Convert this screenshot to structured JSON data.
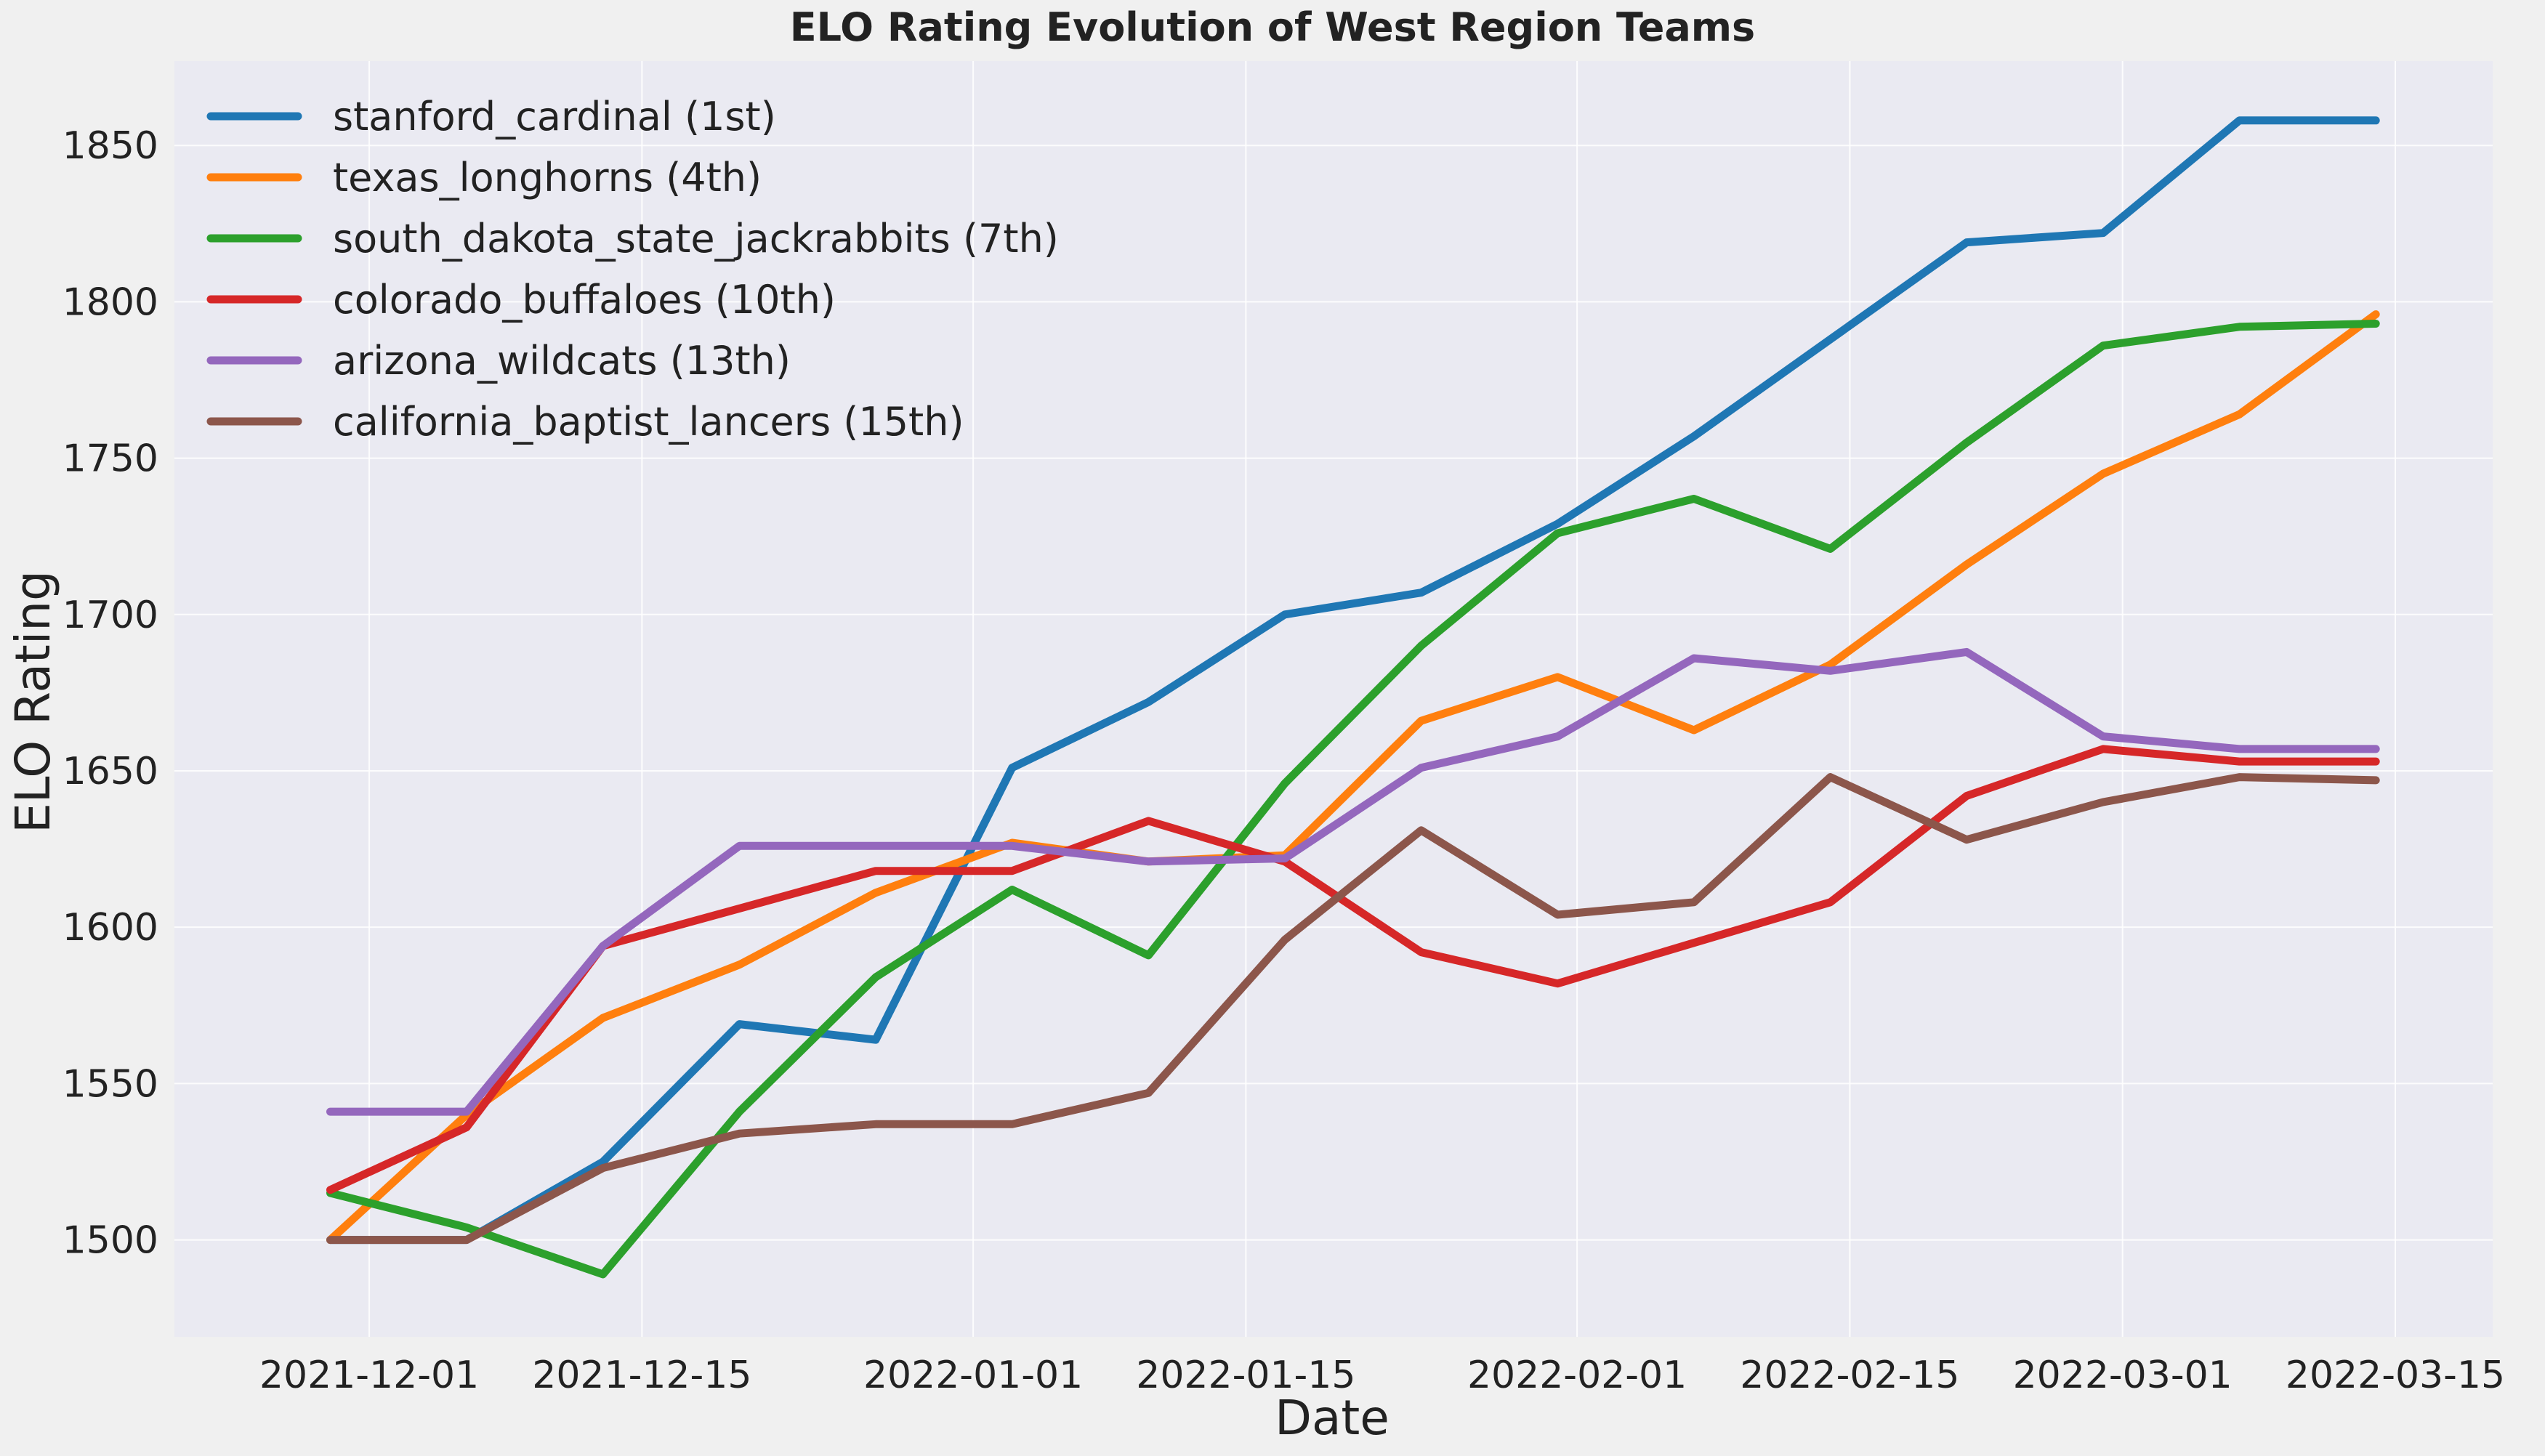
{
  "chart_data": {
    "type": "line",
    "title": "ELO Rating Evolution of West Region Teams",
    "xlabel": "Date",
    "ylabel": "ELO Rating",
    "x": [
      "2021-11-29",
      "2021-12-06",
      "2021-12-13",
      "2021-12-20",
      "2021-12-27",
      "2022-01-03",
      "2022-01-10",
      "2022-01-17",
      "2022-01-24",
      "2022-01-31",
      "2022-02-07",
      "2022-02-14",
      "2022-02-21",
      "2022-02-28",
      "2022-03-07",
      "2022-03-14"
    ],
    "x_ticks": [
      "2021-12-01",
      "2021-12-15",
      "2022-01-01",
      "2022-01-15",
      "2022-02-01",
      "2022-02-15",
      "2022-03-01",
      "2022-03-15"
    ],
    "xlim": [
      "2021-11-21",
      "2022-03-20"
    ],
    "y_ticks": [
      1500,
      1550,
      1600,
      1650,
      1700,
      1750,
      1800,
      1850
    ],
    "ylim": [
      1469,
      1877
    ],
    "grid": true,
    "legend_position": "top-left",
    "series": [
      {
        "name": "stanford_cardinal (1st)",
        "color": "#1f77b4",
        "values": [
          1500,
          1500,
          1525,
          1569,
          1564,
          1651,
          1672,
          1700,
          1707,
          1729,
          1757,
          1788,
          1819,
          1822,
          1858,
          1858
        ]
      },
      {
        "name": "texas_longhorns (4th)",
        "color": "#ff7f0e",
        "values": [
          1500,
          1540,
          1571,
          1588,
          1611,
          1627,
          1621,
          1623,
          1666,
          1680,
          1663,
          1684,
          1716,
          1745,
          1764,
          1796
        ]
      },
      {
        "name": "south_dakota_state_jackrabbits (7th)",
        "color": "#2ca02c",
        "values": [
          1515,
          1504,
          1489,
          1541,
          1584,
          1612,
          1591,
          1646,
          1690,
          1726,
          1737,
          1721,
          1755,
          1786,
          1792,
          1793
        ]
      },
      {
        "name": "colorado_buffaloes (10th)",
        "color": "#d62728",
        "values": [
          1516,
          1536,
          1594,
          1606,
          1618,
          1618,
          1634,
          1621,
          1592,
          1582,
          1595,
          1608,
          1642,
          1657,
          1653,
          1653
        ]
      },
      {
        "name": "arizona_wildcats (13th)",
        "color": "#9467bd",
        "values": [
          1541,
          1541,
          1594,
          1626,
          1626,
          1626,
          1621,
          1622,
          1651,
          1661,
          1686,
          1682,
          1688,
          1661,
          1657,
          1657
        ]
      },
      {
        "name": "california_baptist_lancers (15th)",
        "color": "#8c564b",
        "values": [
          1500,
          1500,
          1523,
          1534,
          1537,
          1537,
          1547,
          1596,
          1631,
          1604,
          1608,
          1648,
          1628,
          1640,
          1648,
          1647
        ]
      }
    ]
  }
}
